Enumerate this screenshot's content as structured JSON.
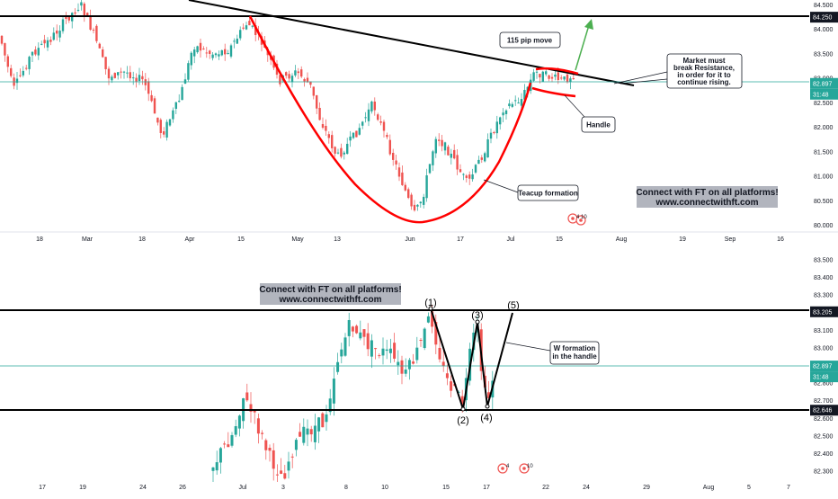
{
  "chart_data": [
    {
      "type": "candlestick",
      "panel": "top",
      "y_ticks": [
        "84.500",
        "84.000",
        "83.500",
        "83.000",
        "82.500",
        "82.000",
        "81.500",
        "81.000",
        "80.500",
        "80.000"
      ],
      "ylim": [
        79.9,
        84.6
      ],
      "x_ticks": [
        "18",
        "Mar",
        "18",
        "Apr",
        "15",
        "May",
        "13",
        "Jun",
        "17",
        "Jul",
        "15",
        "Aug",
        "19",
        "Sep",
        "16"
      ],
      "price_tags": [
        {
          "value": "84.250",
          "y": 84.25,
          "style": "black"
        },
        {
          "value": "82.897",
          "y": 82.897,
          "style": "teal"
        },
        {
          "value": "31:48",
          "style": "teal-time"
        }
      ],
      "annotations": [
        {
          "text": "115 pip move"
        },
        {
          "text": "Market must break Resistance, in order for it to continue rising."
        },
        {
          "text": "Handle"
        },
        {
          "text": "Teacup formation"
        }
      ],
      "banner": [
        "Connect with FT on all platforms!",
        "www.connectwithft.com"
      ],
      "event_badge": "4 10",
      "resistance_level": 84.25,
      "current_price": 82.897
    },
    {
      "type": "candlestick",
      "panel": "bottom",
      "y_ticks": [
        "83.500",
        "83.400",
        "83.300",
        "83.200",
        "83.100",
        "83.000",
        "82.900",
        "82.800",
        "82.700",
        "82.600",
        "82.500",
        "82.400",
        "82.300"
      ],
      "ylim": [
        82.27,
        83.56
      ],
      "x_ticks": [
        "17",
        "19",
        "24",
        "26",
        "Jul",
        "3",
        "8",
        "10",
        "15",
        "17",
        "22",
        "24",
        "29",
        "Aug",
        "5",
        "7"
      ],
      "price_tags": [
        {
          "value": "83.205",
          "y": 83.205,
          "style": "black"
        },
        {
          "value": "82.897",
          "y": 82.897,
          "style": "teal"
        },
        {
          "value": "31:48",
          "style": "teal-time"
        },
        {
          "value": "82.646",
          "y": 82.646,
          "style": "black"
        }
      ],
      "wave_labels": [
        "(1)",
        "(2)",
        "(3)",
        "(4)",
        "(5)"
      ],
      "annotations": [
        {
          "text": "W formation in the handle"
        }
      ],
      "banner": [
        "Connect with FT on all platforms!",
        "www.connectwithft.com"
      ],
      "event_badges": [
        "4",
        "10"
      ],
      "resistance_level": 83.205,
      "support_level": 82.646,
      "current_price": 82.897
    }
  ],
  "colors": {
    "up": "#26a69a",
    "down": "#ef5350",
    "teal_line": "#26a69a",
    "curve": "#ff0000",
    "arrow": "#4caf50",
    "label_bg": "#131722",
    "banner_bg": "#b2b5be"
  }
}
